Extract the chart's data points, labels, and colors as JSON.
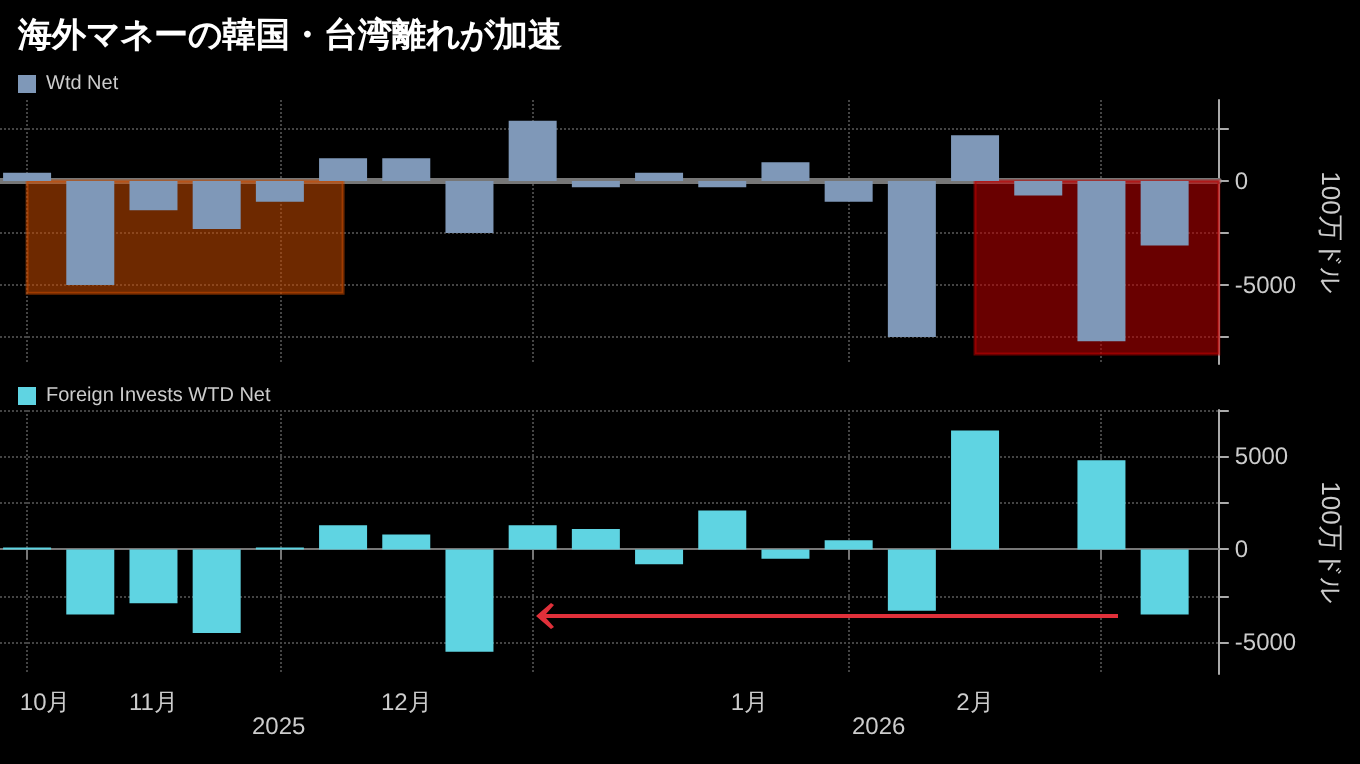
{
  "chart_data": [
    {
      "type": "bar",
      "title": "海外マネーの韓国・台湾離れが加速",
      "ylabel": "100万ドル",
      "x": [
        "2025-10-31",
        "2025-11-07",
        "2025-11-14",
        "2025-11-21",
        "2025-11-28",
        "2025-12-05",
        "2025-12-12",
        "2025-12-19",
        "2025-12-26",
        "2026-01-02",
        "2026-01-09",
        "2026-01-16",
        "2026-01-23",
        "2026-01-30",
        "2026-02-06",
        "2026-02-13",
        "2026-02-20",
        "2026-02-27",
        "2026-03-06"
      ],
      "series": [
        {
          "name": "Wtd Net",
          "color": "#7f98b8",
          "values": [
            400,
            -5000,
            -1400,
            -2300,
            -1000,
            1100,
            1100,
            -2500,
            2900,
            -300,
            400,
            -300,
            900,
            -1000,
            -7500,
            2200,
            -700,
            -7700,
            -3100
          ]
        }
      ],
      "xlim": [
        "2025-10-28",
        "2026-03-12"
      ],
      "xticks": [
        {
          "value": "2025-10-31",
          "label": null
        },
        {
          "value": "2025-11-28",
          "label": null
        },
        {
          "value": "2025-12-26",
          "label": null
        },
        {
          "value": "2026-01-30",
          "label": null
        },
        {
          "value": "2026-02-27",
          "label": null
        }
      ],
      "ylim": [
        -8800,
        3900
      ],
      "yticks": [
        {
          "value": 2500,
          "label": null
        },
        0,
        {
          "value": -2500,
          "label": null
        },
        -5000,
        {
          "value": -7500,
          "label": null
        }
      ],
      "bands": [
        {
          "axis": "x",
          "from": "2025-10-31",
          "to": "2025-12-05",
          "color": "#c84b00"
        },
        {
          "axis": "x",
          "from": "2026-02-13",
          "to": "2026-03-12",
          "color": "#c00000"
        }
      ],
      "tick_labels": "y",
      "grid": true,
      "legend": "top left"
    },
    {
      "type": "bar",
      "ylabel": "100万ドル",
      "x": [
        "2025-10-31",
        "2025-11-07",
        "2025-11-14",
        "2025-11-21",
        "2025-11-28",
        "2025-12-05",
        "2025-12-12",
        "2025-12-19",
        "2025-12-26",
        "2026-01-02",
        "2026-01-09",
        "2026-01-16",
        "2026-01-23",
        "2026-01-30",
        "2026-02-06",
        "2026-02-13",
        "2026-02-20",
        "2026-02-27",
        "2026-03-06"
      ],
      "series": [
        {
          "name": "Foreign Invests WTD Net",
          "color": "#5fd4e2",
          "values": [
            100,
            -3500,
            -2900,
            -4500,
            100,
            1300,
            800,
            -5500,
            1300,
            1100,
            -800,
            2100,
            -500,
            500,
            -3300,
            6400,
            null,
            4800,
            -3500
          ]
        }
      ],
      "xlim": [
        "2025-10-28",
        "2026-03-12"
      ],
      "xticks": [
        {
          "value": "2025-10-31",
          "label": null
        },
        {
          "value": "2025-11-02",
          "label": "10月"
        },
        {
          "value": "2025-11-14",
          "label": "11月"
        },
        {
          "value": "2025-11-28",
          "label": null
        },
        {
          "value": "2025-12-12",
          "label": "12月"
        },
        {
          "value": "2025-12-26",
          "label": null
        },
        {
          "value": "2026-01-19",
          "label": "1月"
        },
        {
          "value": "2026-01-30",
          "label": null
        },
        {
          "value": "2026-02-13",
          "label": "2月"
        },
        {
          "value": "2026-02-27",
          "label": null
        }
      ],
      "ylim": [
        -6700,
        7500
      ],
      "yticks": [
        {
          "value": 7500,
          "label": null
        },
        5000,
        {
          "value": 2500,
          "label": null
        },
        0,
        {
          "value": -2500,
          "label": null
        },
        -5000
      ],
      "annotations": [
        "2025",
        "2026"
      ],
      "grid": true,
      "legend": "top left"
    }
  ]
}
